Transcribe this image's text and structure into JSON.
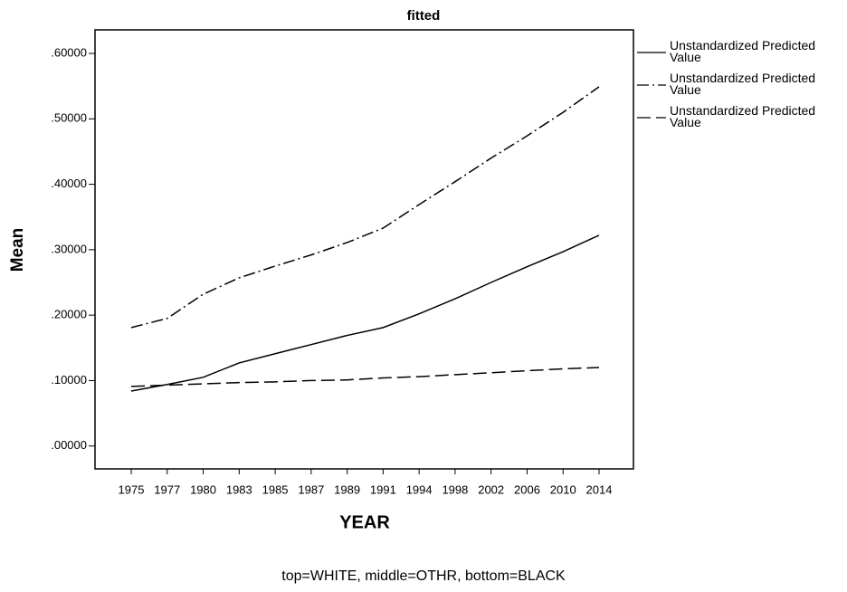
{
  "chart_data": {
    "type": "line",
    "title": "fitted",
    "x_label": "YEAR",
    "y_label": "Mean",
    "footnote": "top=WHITE, middle=OTHR, bottom=BLACK",
    "categories": [
      "1975",
      "1977",
      "1980",
      "1983",
      "1985",
      "1987",
      "1989",
      "1991",
      "1994",
      "1998",
      "2002",
      "2006",
      "2010",
      "2014"
    ],
    "series": [
      {
        "name": "Unstandardized Predicted Value",
        "color": "#000000",
        "dash": "solid",
        "values": [
          0.084,
          0.094,
          0.105,
          0.127,
          0.141,
          0.155,
          0.169,
          0.181,
          0.202,
          0.225,
          0.25,
          0.274,
          0.297,
          0.322
        ]
      },
      {
        "name": "Unstandardized Predicted Value",
        "color": "#000000",
        "dash": "dashdot",
        "values": [
          0.181,
          0.195,
          0.232,
          0.257,
          0.275,
          0.292,
          0.311,
          0.333,
          0.369,
          0.404,
          0.44,
          0.474,
          0.51,
          0.549
        ]
      },
      {
        "name": "Unstandardized Predicted Value",
        "color": "#000000",
        "dash": "dashed",
        "values": [
          0.091,
          0.093,
          0.095,
          0.097,
          0.098,
          0.1,
          0.101,
          0.104,
          0.106,
          0.109,
          0.112,
          0.115,
          0.118,
          0.12
        ]
      }
    ],
    "ylim": [
      -0.035,
      0.636
    ],
    "yticks": [
      {
        "value": 0,
        "label": ".00000"
      },
      {
        "value": 0.1,
        "label": ".10000"
      },
      {
        "value": 0.2,
        "label": ".20000"
      },
      {
        "value": 0.3,
        "label": ".30000"
      },
      {
        "value": 0.4,
        "label": ".40000"
      },
      {
        "value": 0.5,
        "label": ".50000"
      },
      {
        "value": 0.6,
        "label": ".60000"
      }
    ],
    "grid": false,
    "legend": "right"
  }
}
